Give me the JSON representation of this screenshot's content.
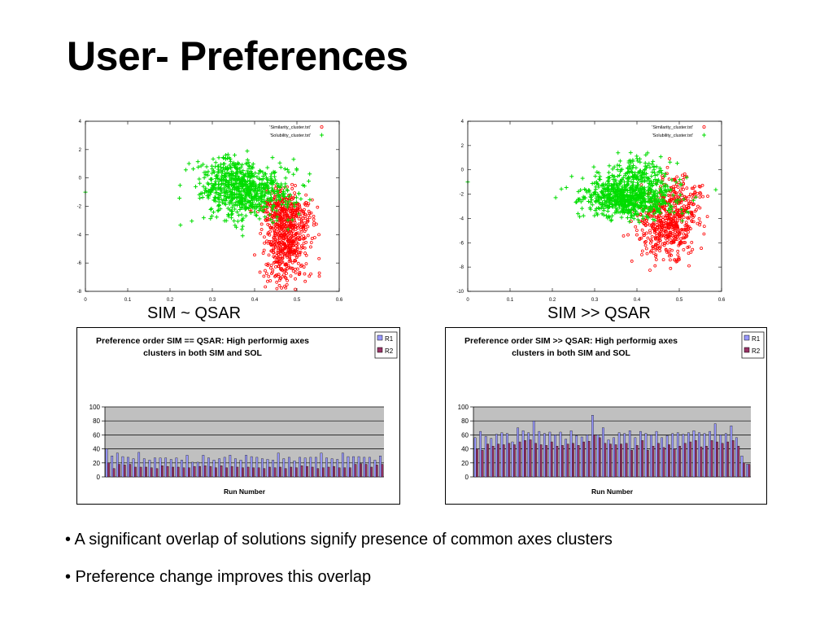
{
  "slide": {
    "title": "User- Preferences",
    "caption_left": "SIM ~ QSAR",
    "caption_right": "SIM >> QSAR",
    "bullets": [
      "• A significant overlap of solutions signify presence of common axes clusters",
      "• Preference change improves this overlap"
    ]
  },
  "colors": {
    "similarity": "#ff0000",
    "solubility": "#00dd00",
    "r1": "#9999ff",
    "r2": "#993366",
    "plot_bg": "#c0c0c0"
  },
  "chart_data": [
    {
      "type": "scatter",
      "title": "",
      "xlabel": "",
      "ylabel": "",
      "xlim": [
        0,
        0.6
      ],
      "ylim": [
        -8,
        4
      ],
      "xticks": [
        "0",
        "0.1",
        "0.2",
        "0.3",
        "0.4",
        "0.5",
        "0.6"
      ],
      "yticks": [
        "4",
        "2",
        "0",
        "-2",
        "-4",
        "-6",
        "-8"
      ],
      "legend_position": "top-right",
      "series": [
        {
          "name": "'Similarity_cluster.txt'",
          "marker": "circle",
          "color": "#ff0000",
          "clusters": [
            {
              "cx": 0.475,
              "cy": -4.5,
              "sx": 0.025,
              "sy": 1.6,
              "n": 500
            },
            {
              "cx": 0.46,
              "cy": -2.2,
              "sx": 0.03,
              "sy": 0.7,
              "n": 160
            },
            {
              "cx": 0.5,
              "cy": -2.8,
              "sx": 0.03,
              "sy": 0.5,
              "n": 60
            }
          ]
        },
        {
          "name": "'Solubility_cluster.txt'",
          "marker": "plus",
          "color": "#00dd00",
          "clusters": [
            {
              "cx": 0.38,
              "cy": -1.0,
              "sx": 0.055,
              "sy": 0.95,
              "n": 650
            },
            {
              "cx": 0.34,
              "cy": 0.3,
              "sx": 0.04,
              "sy": 0.6,
              "n": 120
            }
          ],
          "outliers": [
            [
              0.0,
              -1.0
            ]
          ]
        }
      ]
    },
    {
      "type": "scatter",
      "title": "",
      "xlabel": "",
      "ylabel": "",
      "xlim": [
        0,
        0.6
      ],
      "ylim": [
        -10,
        4
      ],
      "xticks": [
        "0",
        "0.1",
        "0.2",
        "0.3",
        "0.4",
        "0.5",
        "0.6"
      ],
      "yticks": [
        "4",
        "2",
        "0",
        "-2",
        "-4",
        "-6",
        "-8",
        "-10"
      ],
      "legend_position": "top-right",
      "series": [
        {
          "name": "'Similarity_cluster.txt'",
          "marker": "circle",
          "color": "#ff0000",
          "clusters": [
            {
              "cx": 0.47,
              "cy": -4.8,
              "sx": 0.035,
              "sy": 1.3,
              "n": 400
            },
            {
              "cx": 0.5,
              "cy": -2.5,
              "sx": 0.035,
              "sy": 1.0,
              "n": 180
            }
          ]
        },
        {
          "name": "'Solubility_cluster.txt'",
          "marker": "plus",
          "color": "#00dd00",
          "clusters": [
            {
              "cx": 0.38,
              "cy": -2.3,
              "sx": 0.055,
              "sy": 0.8,
              "n": 700
            },
            {
              "cx": 0.4,
              "cy": -0.3,
              "sx": 0.04,
              "sy": 0.8,
              "n": 150
            }
          ],
          "outliers": [
            [
              0.0,
              -1.0
            ]
          ]
        }
      ]
    },
    {
      "type": "bar",
      "title": "Preference order SIM == QSAR: High performig axes clusters in both SIM and SOL",
      "title_lines": [
        "Preference order SIM == QSAR: High performig axes",
        "clusters in both SIM and SOL"
      ],
      "xlabel": "Run Number",
      "ylabel": "",
      "ylim": [
        0,
        100
      ],
      "yticks": [
        "100",
        "80",
        "60",
        "40",
        "20",
        "0"
      ],
      "legend_position": "top-right",
      "grid": true,
      "series": [
        {
          "name": "R1",
          "color": "#9999ff",
          "values": [
            40,
            30,
            34,
            29,
            28,
            26,
            35,
            26,
            24,
            27,
            27,
            27,
            25,
            27,
            24,
            31,
            21,
            21,
            31,
            27,
            24,
            26,
            28,
            31,
            26,
            24,
            31,
            29,
            28,
            26,
            25,
            24,
            34,
            26,
            28,
            23,
            28,
            27,
            28,
            28,
            34,
            27,
            26,
            25,
            34,
            29,
            29,
            29,
            28,
            28,
            24,
            30
          ]
        },
        {
          "name": "R2",
          "color": "#993366",
          "values": [
            20,
            12,
            18,
            17,
            18,
            14,
            14,
            14,
            13,
            12,
            16,
            15,
            14,
            14,
            13,
            13,
            15,
            15,
            16,
            15,
            13,
            16,
            13,
            15,
            14,
            13,
            14,
            13,
            13,
            12,
            14,
            13,
            14,
            12,
            14,
            13,
            16,
            15,
            14,
            12,
            13,
            14,
            15,
            13,
            13,
            13,
            18,
            19,
            18,
            14,
            17,
            18
          ]
        }
      ]
    },
    {
      "type": "bar",
      "title": "Preference order SIM >> QSAR: High performig axes clusters in both SIM and SOL",
      "title_lines": [
        "Preference order SIM >> QSAR: High performig axes",
        "clusters in both SIM and SOL"
      ],
      "xlabel": "Run Number",
      "ylabel": "",
      "ylim": [
        0,
        100
      ],
      "yticks": [
        "100",
        "80",
        "60",
        "40",
        "20",
        "0"
      ],
      "legend_position": "top-right",
      "grid": true,
      "series": [
        {
          "name": "R1",
          "color": "#9999ff",
          "values": [
            56,
            65,
            58,
            55,
            61,
            63,
            62,
            50,
            70,
            66,
            63,
            80,
            65,
            62,
            64,
            60,
            64,
            54,
            66,
            59,
            57,
            60,
            88,
            60,
            70,
            53,
            56,
            63,
            62,
            66,
            56,
            65,
            62,
            60,
            65,
            56,
            59,
            62,
            63,
            61,
            63,
            66,
            63,
            62,
            65,
            76,
            60,
            62,
            73,
            56,
            30,
            18
          ]
        },
        {
          "name": "R2",
          "color": "#993366",
          "values": [
            40,
            38,
            47,
            44,
            47,
            46,
            48,
            46,
            50,
            52,
            53,
            48,
            46,
            45,
            50,
            44,
            45,
            47,
            48,
            45,
            50,
            51,
            60,
            56,
            48,
            47,
            46,
            47,
            48,
            38,
            45,
            52,
            38,
            44,
            48,
            42,
            46,
            40,
            44,
            48,
            50,
            52,
            43,
            44,
            52,
            50,
            48,
            50,
            52,
            44,
            20,
            18
          ]
        }
      ]
    }
  ]
}
